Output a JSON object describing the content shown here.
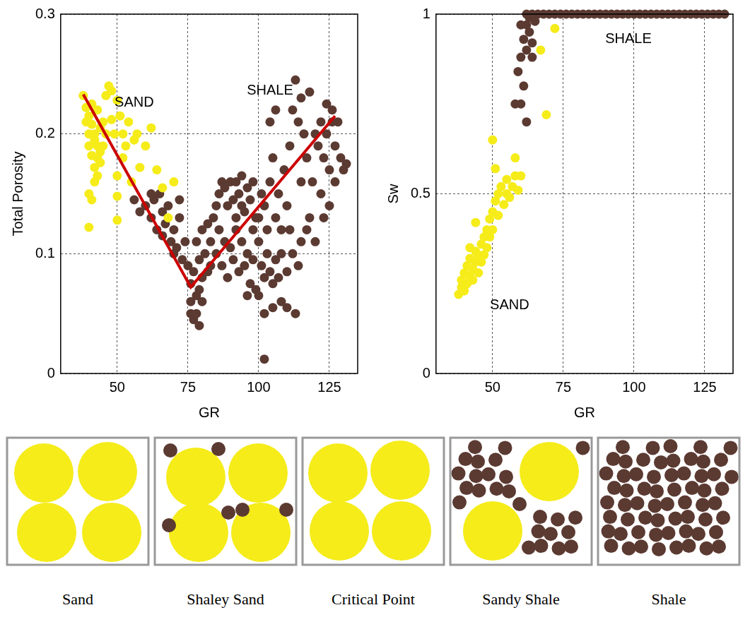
{
  "chart_data": [
    {
      "type": "scatter",
      "x_label": "GR",
      "y_label": "Total Porosity",
      "xlim": [
        30,
        135
      ],
      "xticks": [
        50,
        75,
        100,
        125
      ],
      "ylim": [
        0,
        0.3
      ],
      "yticks": [
        0,
        0.1,
        0.2,
        0.3
      ],
      "grid": true,
      "annotations": [
        {
          "text": "SAND",
          "x": 56,
          "y": 0.226
        },
        {
          "text": "SHALE",
          "x": 104,
          "y": 0.236
        }
      ],
      "series": [
        {
          "type": "line",
          "color": "#cc0000",
          "line_style": "solid",
          "marker": "none",
          "x": [
            38,
            76,
            127
          ],
          "values": [
            0.233,
            0.072,
            0.215
          ]
        },
        {
          "type": "scatter",
          "color": "#f5ec1a",
          "marker": "circle",
          "x": [
            38,
            39,
            39,
            40,
            40,
            40,
            41,
            41,
            41,
            42,
            42,
            42,
            43,
            43,
            43,
            44,
            44,
            45,
            45,
            46,
            40,
            41,
            42,
            40,
            43,
            44,
            46,
            47,
            48,
            48,
            49,
            50,
            50,
            51,
            52,
            52,
            53,
            54,
            55,
            56,
            57,
            58,
            60,
            62,
            64,
            66,
            68,
            70,
            50,
            50
          ],
          "values": [
            0.232,
            0.222,
            0.21,
            0.215,
            0.2,
            0.19,
            0.225,
            0.208,
            0.182,
            0.2,
            0.195,
            0.172,
            0.22,
            0.19,
            0.18,
            0.205,
            0.176,
            0.21,
            0.19,
            0.2,
            0.15,
            0.145,
            0.16,
            0.122,
            0.165,
            0.185,
            0.232,
            0.24,
            0.236,
            0.212,
            0.2,
            0.228,
            0.165,
            0.215,
            0.2,
            0.18,
            0.19,
            0.21,
            0.16,
            0.195,
            0.2,
            0.172,
            0.19,
            0.205,
            0.17,
            0.155,
            0.13,
            0.16,
            0.148,
            0.128
          ]
        },
        {
          "type": "scatter",
          "color": "#5b3a32",
          "marker": "circle",
          "x": [
            56,
            58,
            60,
            62,
            63,
            64,
            65,
            66,
            67,
            68,
            69,
            70,
            71,
            72,
            73,
            74,
            75,
            62,
            66,
            70,
            76,
            77,
            78,
            76,
            78,
            79,
            80,
            77,
            79,
            81,
            76,
            80,
            82,
            78,
            80,
            82,
            84,
            85,
            83,
            79,
            86,
            87,
            88,
            89,
            90,
            91,
            92,
            93,
            94,
            95,
            86,
            88,
            90,
            92,
            94,
            96,
            98,
            99,
            97,
            100,
            87,
            89,
            91,
            93,
            95,
            97,
            99,
            100,
            96,
            98,
            101,
            102,
            103,
            104,
            105,
            106,
            107,
            108,
            102,
            102,
            100,
            101,
            102,
            103,
            104,
            105,
            106,
            107,
            108,
            109,
            110,
            111,
            112,
            113,
            114,
            115,
            116,
            117,
            118,
            119,
            120,
            121,
            122,
            123,
            124,
            125,
            126,
            127,
            128,
            129,
            130,
            131,
            125,
            122,
            118,
            115,
            112,
            110,
            108,
            105,
            98,
            96,
            94,
            92,
            110,
            113,
            104,
            106,
            114,
            117,
            120,
            123,
            127,
            124,
            126,
            115,
            111,
            85,
            83,
            72
          ],
          "values": [
            0.145,
            0.135,
            0.14,
            0.13,
            0.145,
            0.12,
            0.15,
            0.135,
            0.125,
            0.14,
            0.11,
            0.12,
            0.105,
            0.13,
            0.095,
            0.11,
            0.09,
            0.15,
            0.115,
            0.1,
            0.05,
            0.045,
            0.05,
            0.06,
            0.065,
            0.07,
            0.08,
            0.085,
            0.095,
            0.1,
            0.075,
            0.06,
            0.085,
            0.11,
            0.12,
            0.125,
            0.13,
            0.14,
            0.11,
            0.04,
            0.15,
            0.16,
            0.155,
            0.14,
            0.16,
            0.145,
            0.13,
            0.15,
            0.14,
            0.135,
            0.12,
            0.11,
            0.105,
            0.12,
            0.11,
            0.1,
            0.12,
            0.13,
            0.145,
            0.11,
            0.09,
            0.08,
            0.095,
            0.085,
            0.09,
            0.075,
            0.07,
            0.065,
            0.065,
            0.095,
            0.09,
            0.08,
            0.1,
            0.085,
            0.075,
            0.095,
            0.08,
            0.1,
            0.05,
            0.012,
            0.13,
            0.15,
            0.14,
            0.12,
            0.16,
            0.18,
            0.13,
            0.15,
            0.12,
            0.17,
            0.14,
            0.19,
            0.22,
            0.245,
            0.21,
            0.23,
            0.2,
            0.18,
            0.235,
            0.16,
            0.2,
            0.19,
            0.21,
            0.18,
            0.2,
            0.17,
            0.22,
            0.19,
            0.21,
            0.18,
            0.17,
            0.175,
            0.14,
            0.15,
            0.13,
            0.11,
            0.1,
            0.085,
            0.06,
            0.055,
            0.16,
            0.155,
            0.165,
            0.16,
            0.055,
            0.05,
            0.21,
            0.22,
            0.09,
            0.12,
            0.11,
            0.13,
            0.16,
            0.225,
            0.21,
            0.16,
            0.12,
            0.1,
            0.09,
            0.145
          ]
        }
      ]
    },
    {
      "type": "scatter",
      "x_label": "GR",
      "y_label": "Sw",
      "xlim": [
        30,
        135
      ],
      "xticks": [
        50,
        75,
        100,
        125
      ],
      "ylim": [
        0,
        1
      ],
      "yticks": [
        0,
        0.5,
        1
      ],
      "grid": true,
      "annotations": [
        {
          "text": "SHALE",
          "x": 98,
          "y": 0.93
        },
        {
          "text": "SAND",
          "x": 56,
          "y": 0.19
        }
      ],
      "series": [
        {
          "type": "scatter",
          "color": "#f5ec1a",
          "marker": "circle",
          "x": [
            38,
            39,
            39,
            40,
            40,
            41,
            41,
            42,
            42,
            43,
            43,
            44,
            44,
            45,
            45,
            46,
            46,
            44,
            47,
            48,
            48,
            49,
            49,
            50,
            50,
            51,
            51,
            50,
            52,
            52,
            53,
            54,
            55,
            55,
            56,
            57,
            58,
            58,
            59,
            60,
            67,
            69,
            72,
            42,
            47
          ],
          "values": [
            0.22,
            0.24,
            0.26,
            0.23,
            0.28,
            0.25,
            0.3,
            0.27,
            0.32,
            0.26,
            0.29,
            0.31,
            0.34,
            0.33,
            0.28,
            0.36,
            0.31,
            0.42,
            0.38,
            0.4,
            0.35,
            0.43,
            0.38,
            0.45,
            0.4,
            0.48,
            0.57,
            0.65,
            0.5,
            0.44,
            0.52,
            0.47,
            0.5,
            0.54,
            0.49,
            0.52,
            0.55,
            0.6,
            0.51,
            0.55,
            0.9,
            0.72,
            0.96,
            0.35,
            0.33
          ]
        },
        {
          "type": "scatter",
          "color": "#5b3a32",
          "marker": "circle",
          "x": [
            58,
            59,
            60,
            60,
            61,
            61,
            62,
            62,
            63,
            63,
            64,
            64,
            65,
            60,
            62,
            62,
            64,
            66,
            68,
            70,
            72,
            74,
            76,
            78,
            80,
            82,
            84,
            86,
            88,
            90,
            92,
            94,
            96,
            98,
            100,
            102,
            104,
            106,
            108,
            110,
            112,
            114,
            116,
            118,
            120,
            122,
            124,
            126,
            128,
            130,
            132
          ],
          "values": [
            0.75,
            0.84,
            0.75,
            0.88,
            0.8,
            0.93,
            0.97,
            0.9,
            0.95,
            0.99,
            0.92,
            0.88,
            0.98,
            0.97,
            0.7,
            1,
            1,
            1,
            1,
            1,
            1,
            1,
            1,
            1,
            1,
            1,
            1,
            1,
            1,
            1,
            1,
            1,
            1,
            1,
            1,
            1,
            1,
            1,
            1,
            1,
            1,
            1,
            1,
            1,
            1,
            1,
            1,
            1,
            1,
            1,
            1
          ]
        }
      ]
    }
  ],
  "diagram": {
    "panels": [
      "Sand",
      "Shaley Sand",
      "Critical Point",
      "Sandy Shale",
      "Shale"
    ]
  }
}
